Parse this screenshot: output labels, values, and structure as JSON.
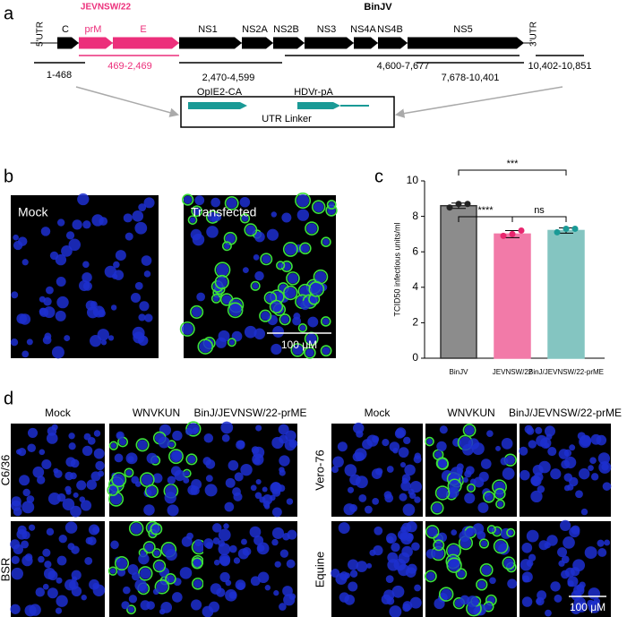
{
  "panel_a": {
    "letter": "a",
    "group_labels": [
      "JEVNSW/22",
      "BinJV"
    ],
    "utr_labels": [
      "5'UTR",
      "3'UTR"
    ],
    "genes": [
      "C",
      "prM",
      "E",
      "NS1",
      "NS2A",
      "NS2B",
      "NS3",
      "NS4A",
      "NS4B",
      "NS5"
    ],
    "ranges": [
      "1-468",
      "469-2,469",
      "2,470-4,599",
      "4,600-7,677",
      "7,678-10,401",
      "10,402-10,851"
    ],
    "linker": {
      "elements": [
        "OpIE2-CA",
        "HDVr-pA"
      ],
      "label": "UTR Linker"
    }
  },
  "panel_b": {
    "letter": "b",
    "images": [
      "Mock",
      "Transfected"
    ],
    "scale_bar": "100 μM"
  },
  "panel_c": {
    "letter": "c"
  },
  "chart_data": {
    "type": "bar",
    "ylabel": "TCID50 infectious units/ml",
    "categories": [
      "BinJV",
      "JEVNSW/22",
      "BinJ/JEVNSW/22-prME"
    ],
    "values": [
      8.6,
      7.0,
      7.2
    ],
    "errors": [
      0.15,
      0.2,
      0.15
    ],
    "replicates": [
      [
        8.5,
        8.7,
        8.7
      ],
      [
        6.9,
        7.0,
        7.2
      ],
      [
        7.1,
        7.3,
        7.3
      ]
    ],
    "colors": [
      "#8c8c8c",
      "#f27aa8",
      "#84c5c1"
    ],
    "ylim": [
      0,
      10
    ],
    "yticks": [
      0,
      2,
      4,
      6,
      8,
      10
    ],
    "annotations": [
      {
        "label": "***",
        "from": 0,
        "to": 2
      },
      {
        "label": "****",
        "from": 0,
        "to": 1
      },
      {
        "label": "ns",
        "from": 1,
        "to": 2
      }
    ]
  },
  "panel_d": {
    "letter": "d",
    "left": {
      "columns": [
        "Mock",
        "WNVKUN",
        "BinJ/JEVNSW/22-prME"
      ],
      "rows": [
        "C6/36",
        "BSR"
      ]
    },
    "right": {
      "columns": [
        "Mock",
        "WNVKUN",
        "BinJ/JEVNSW/22-prME"
      ],
      "rows": [
        "Vero-76",
        "Equine"
      ]
    },
    "scale_bar": "100 μM"
  }
}
